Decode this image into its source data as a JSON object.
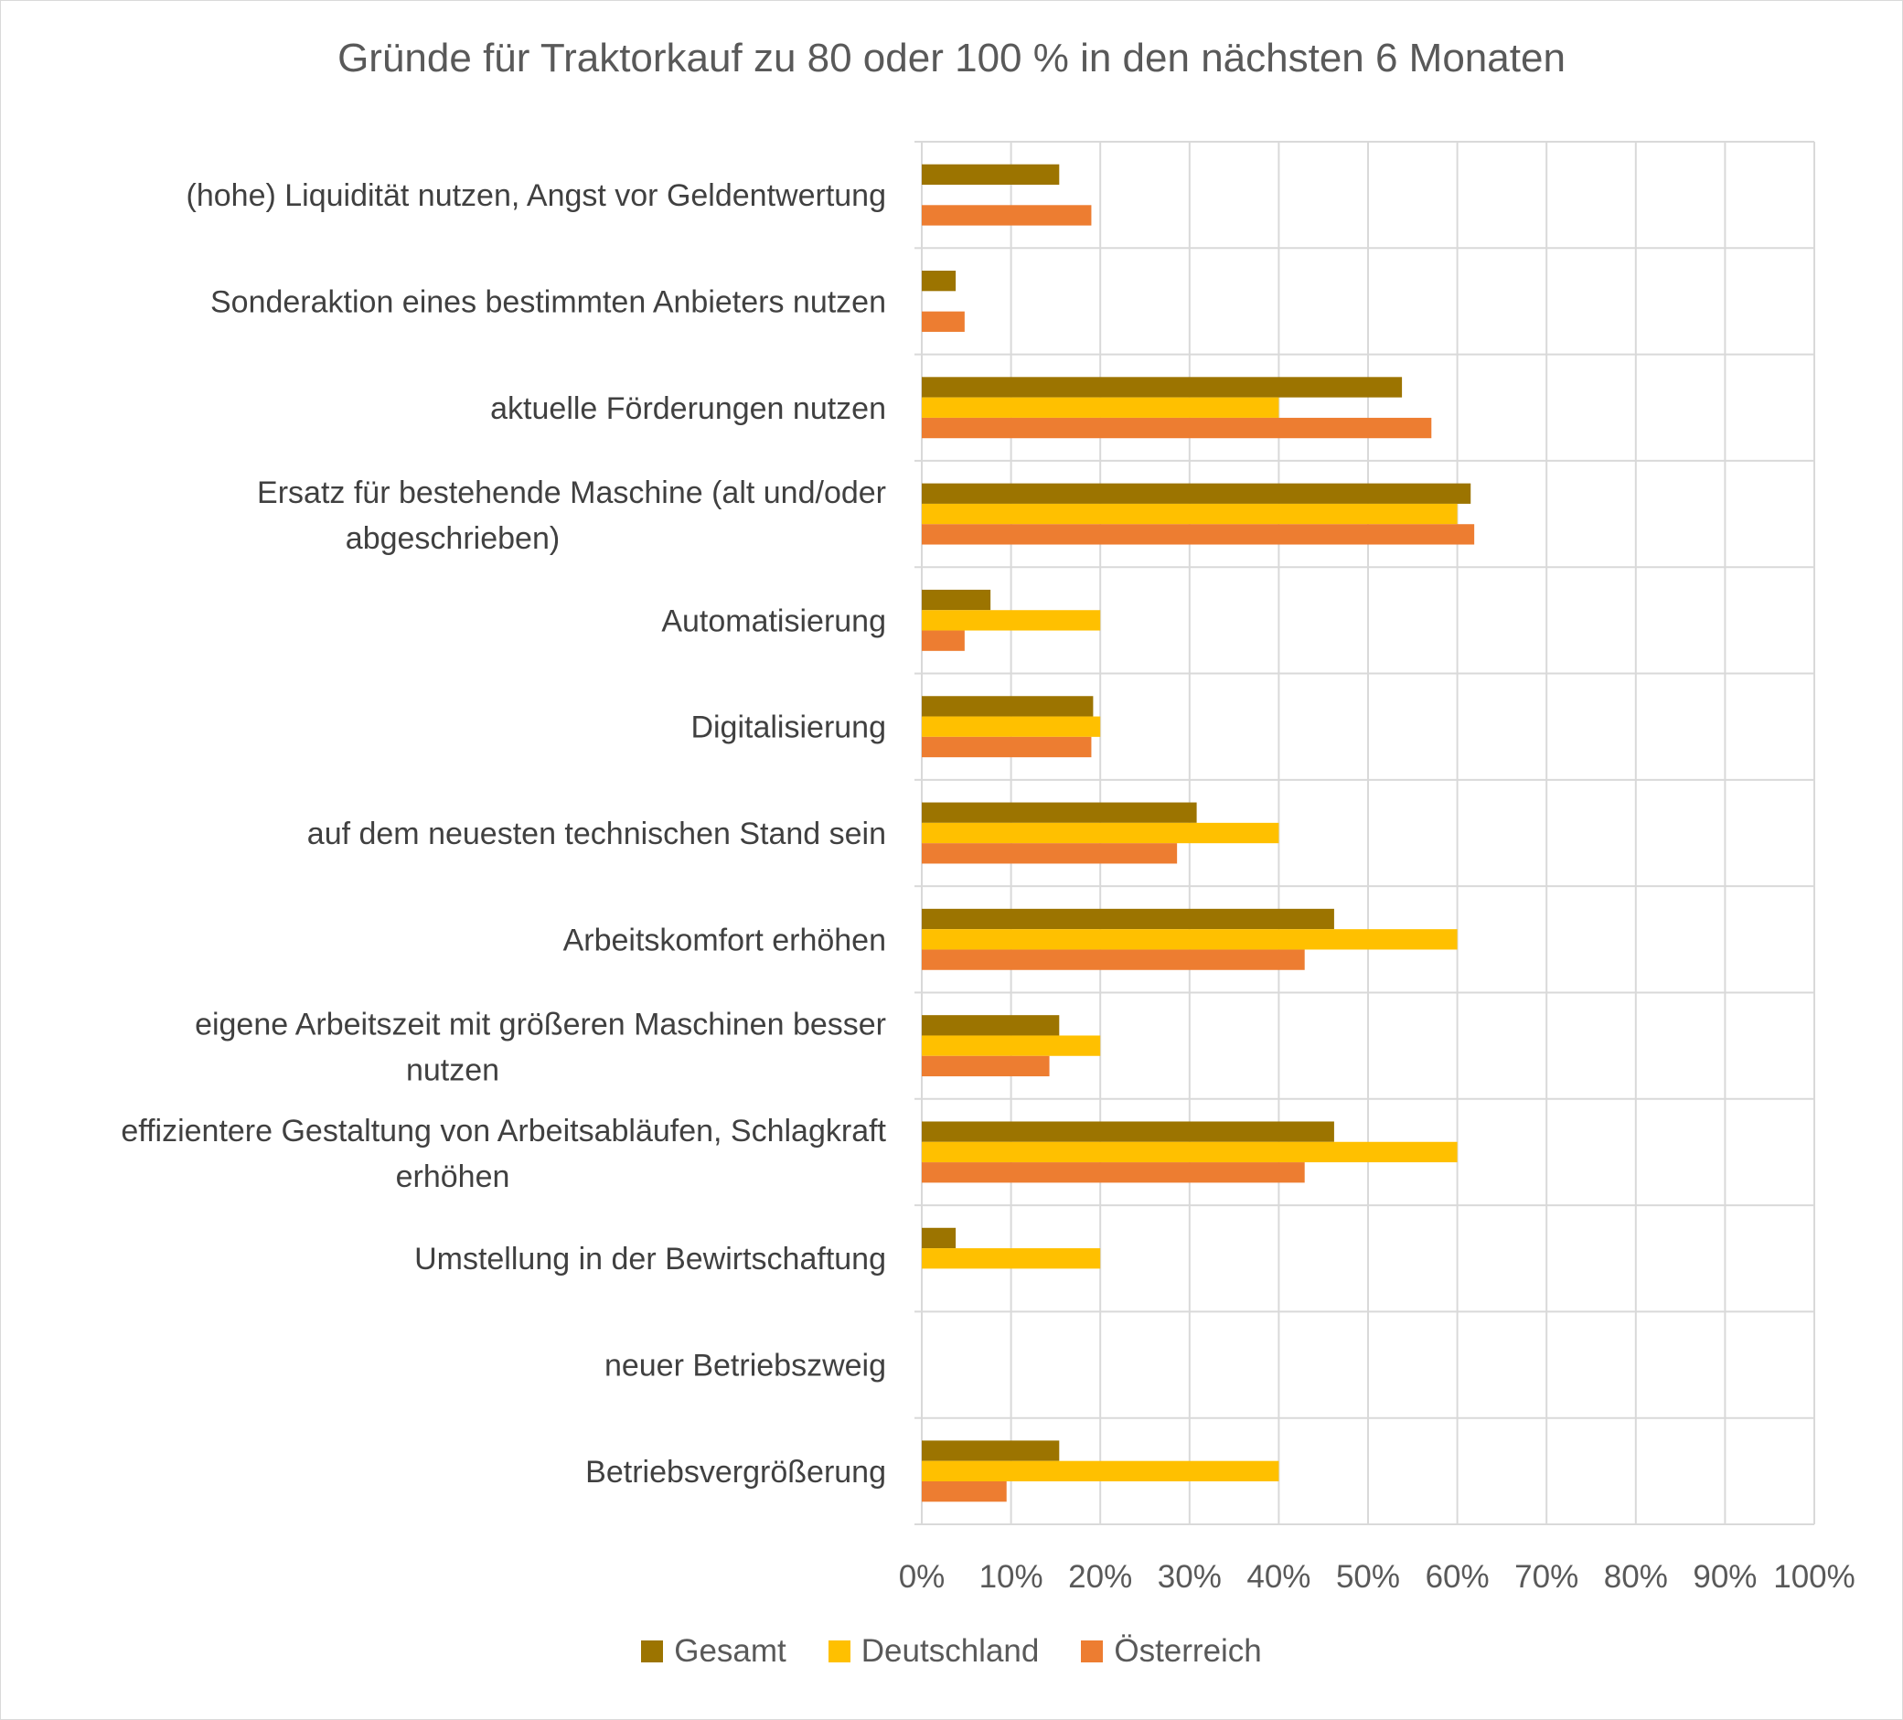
{
  "chart_data": {
    "type": "bar",
    "orientation": "horizontal",
    "title": "Gründe für Traktorkauf zu 80 oder 100 % in den nächsten 6 Monaten",
    "categories": [
      "(hohe) Liquidität nutzen, Angst vor Geldentwertung",
      "Sonderaktion eines bestimmten Anbieters nutzen",
      "aktuelle Förderungen nutzen",
      "Ersatz für bestehende Maschine (alt und/oder abgeschrieben)",
      "Automatisierung",
      "Digitalisierung",
      "auf dem neuesten technischen Stand sein",
      "Arbeitskomfort erhöhen",
      "eigene Arbeitszeit mit größeren Maschinen besser nutzen",
      "effizientere Gestaltung von Arbeitsabläufen, Schlagkraft erhöhen",
      "Umstellung in der Bewirtschaftung",
      "neuer Betriebszweig",
      "Betriebsvergrößerung"
    ],
    "category_lines": [
      [
        "(hohe) Liquidität nutzen, Angst vor Geldentwertung"
      ],
      [
        "Sonderaktion eines bestimmten Anbieters nutzen"
      ],
      [
        "aktuelle Förderungen nutzen"
      ],
      [
        "Ersatz für bestehende Maschine (alt und/oder",
        "abgeschrieben)"
      ],
      [
        "Automatisierung"
      ],
      [
        "Digitalisierung"
      ],
      [
        "auf dem neuesten technischen Stand sein"
      ],
      [
        "Arbeitskomfort erhöhen"
      ],
      [
        "eigene Arbeitszeit mit größeren Maschinen besser",
        "nutzen"
      ],
      [
        "effizientere Gestaltung von Arbeitsabläufen, Schlagkraft",
        "erhöhen"
      ],
      [
        "Umstellung in der Bewirtschaftung"
      ],
      [
        "neuer Betriebszweig"
      ],
      [
        "Betriebsvergrößerung"
      ]
    ],
    "series": [
      {
        "name": "Gesamt",
        "color": "#9c7400",
        "values": [
          15.4,
          3.8,
          53.8,
          61.5,
          7.7,
          19.2,
          30.8,
          46.2,
          15.4,
          46.2,
          3.8,
          0,
          15.4
        ]
      },
      {
        "name": "Deutschland",
        "color": "#ffc000",
        "values": [
          0,
          0,
          40,
          60,
          20,
          20,
          40,
          60,
          20,
          60,
          20,
          0,
          40
        ]
      },
      {
        "name": "Österreich",
        "color": "#ed7d31",
        "values": [
          19.0,
          4.8,
          57.1,
          61.9,
          4.8,
          19.0,
          28.6,
          42.9,
          14.3,
          42.9,
          0,
          0,
          9.5
        ]
      }
    ],
    "xlim": [
      0,
      100
    ],
    "x_ticks": [
      "0%",
      "10%",
      "20%",
      "30%",
      "40%",
      "50%",
      "60%",
      "70%",
      "80%",
      "90%",
      "100%"
    ],
    "grid": true,
    "legend_position": "bottom"
  }
}
